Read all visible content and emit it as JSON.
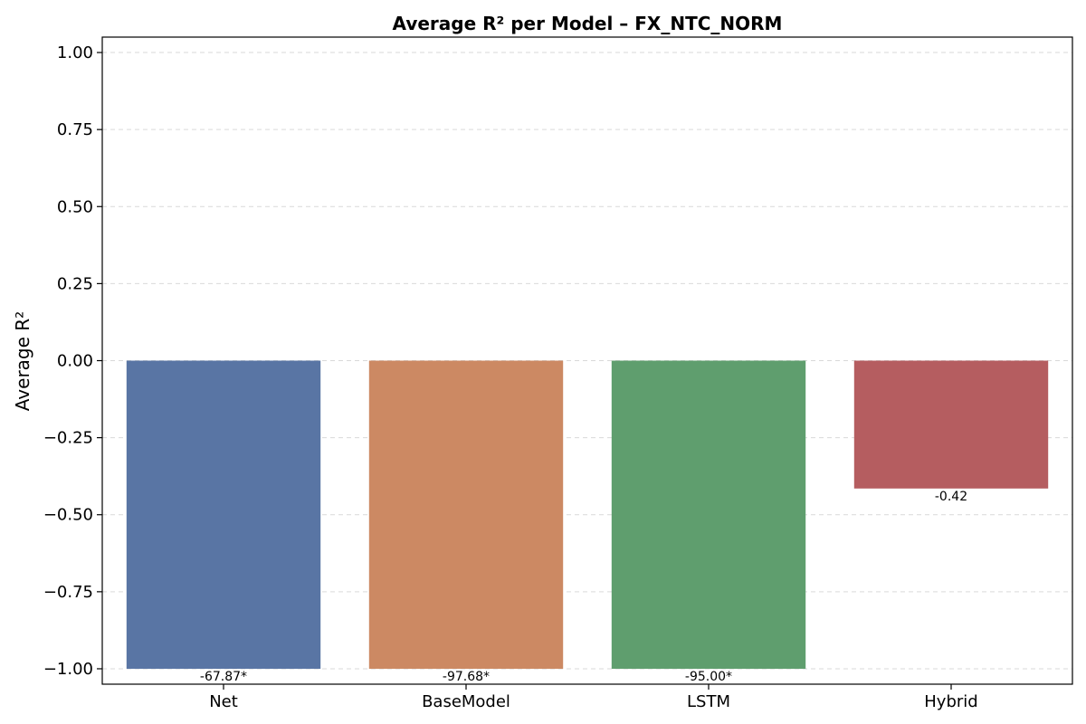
{
  "chart_data": {
    "type": "bar",
    "title": "Average R² per Model – FX_NTC_NORM",
    "xlabel": "",
    "ylabel": "Average R²",
    "ylim": [
      -1.05,
      1.05
    ],
    "yticks": [
      1.0,
      0.75,
      0.5,
      0.25,
      0.0,
      -0.25,
      -0.5,
      -0.75,
      -1.0
    ],
    "ytick_labels": [
      "1.00",
      "0.75",
      "0.50",
      "0.25",
      "0.00",
      "−0.25",
      "−0.50",
      "−0.75",
      "−1.00"
    ],
    "grid": "horizontal dashed",
    "categories": [
      "Net",
      "BaseModel",
      "LSTM",
      "Hybrid"
    ],
    "values": [
      -67.87,
      -97.68,
      -95.0,
      -0.42
    ],
    "plotted_values": [
      -1.0,
      -1.0,
      -1.0,
      -0.415
    ],
    "data_labels": [
      "-67.87*",
      "-97.68*",
      "-95.00*",
      "-0.42"
    ],
    "colors": [
      "#5975a4",
      "#cc8963",
      "#5f9e6e",
      "#b55d60"
    ]
  }
}
